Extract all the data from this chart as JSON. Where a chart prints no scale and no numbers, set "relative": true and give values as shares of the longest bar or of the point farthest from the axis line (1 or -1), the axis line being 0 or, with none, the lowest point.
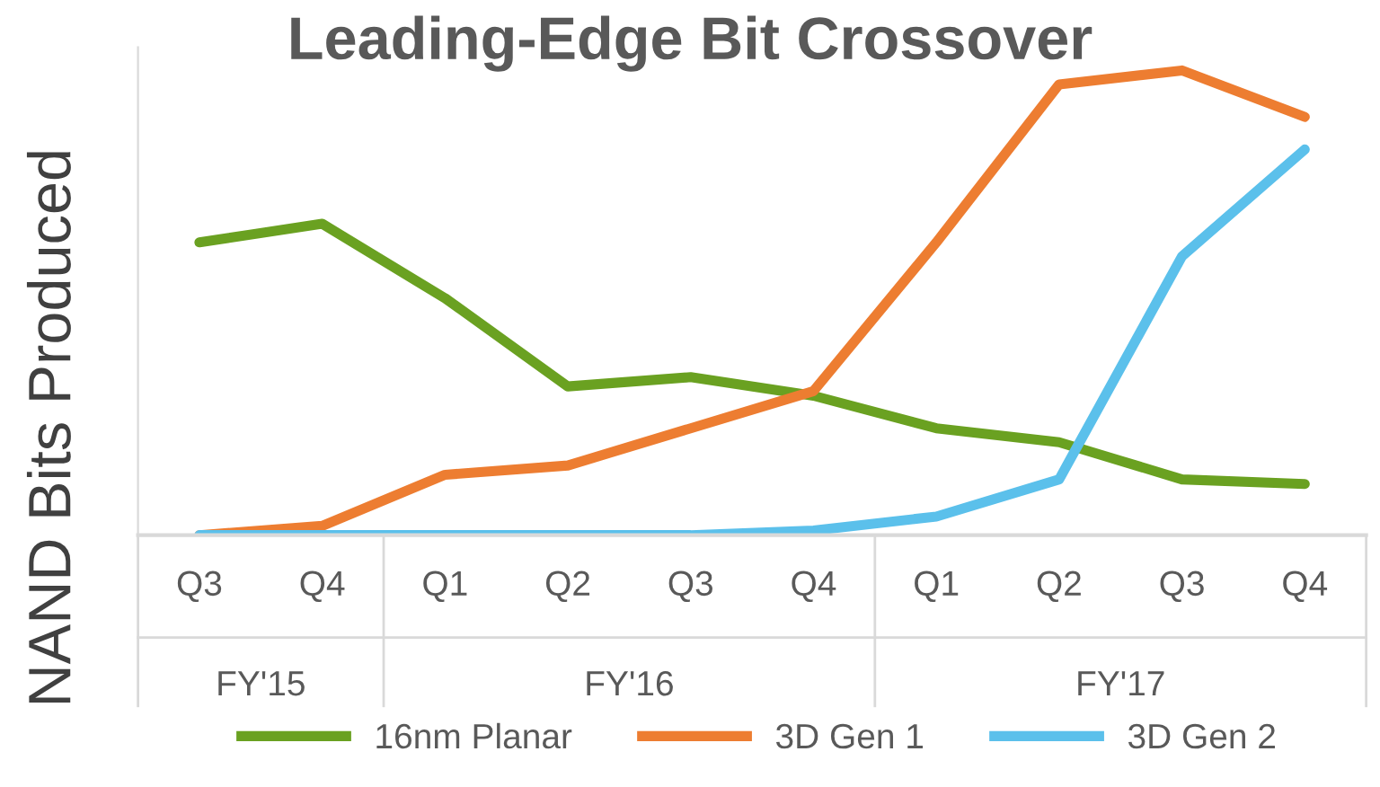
{
  "chart_data": {
    "type": "line",
    "title": "Leading-Edge Bit Crossover",
    "ylabel": "NAND Bits Produced",
    "categories": [
      "Q3",
      "Q4",
      "Q1",
      "Q2",
      "Q3",
      "Q4",
      "Q1",
      "Q2",
      "Q3",
      "Q4"
    ],
    "annotations": [
      "FY'15",
      "FY'16",
      "FY'17"
    ],
    "relative": true,
    "series": [
      {
        "name": "16nm Planar",
        "color": "#6aa121",
        "values": [
          0.63,
          0.67,
          0.51,
          0.32,
          0.34,
          0.3,
          0.23,
          0.2,
          0.12,
          0.11
        ]
      },
      {
        "name": "3D Gen 1",
        "color": "#ed7d31",
        "values": [
          0,
          0.02,
          0.13,
          0.15,
          0.23,
          0.31,
          0.63,
          0.97,
          1,
          0.9
        ]
      },
      {
        "name": "3D Gen 2",
        "color": "#5bc0eb",
        "values": [
          0,
          0,
          0,
          0,
          0,
          0.01,
          0.04,
          0.12,
          0.6,
          0.83
        ]
      }
    ],
    "legend": "bottom",
    "grid": false,
    "marker": "none",
    "line_style": "solid"
  }
}
